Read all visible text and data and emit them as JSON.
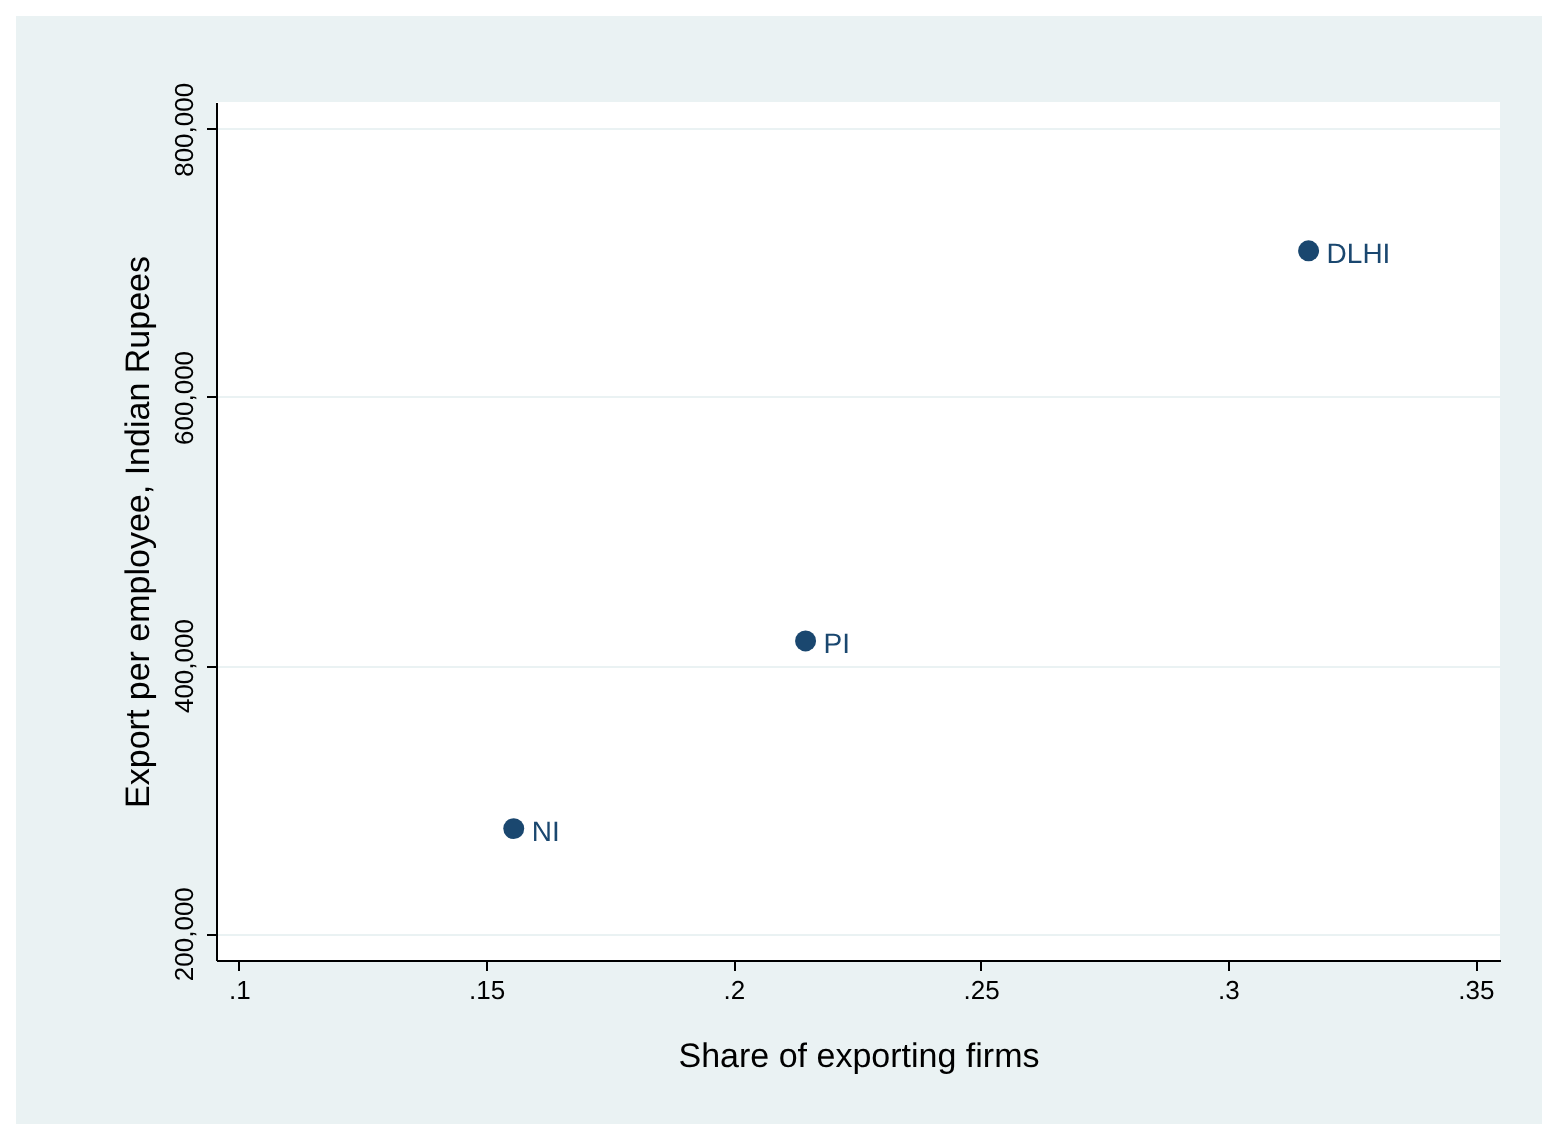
{
  "chart_data": {
    "type": "scatter",
    "xlabel": "Share of exporting firms",
    "ylabel": "Export per employee, Indian Rupees",
    "x": [
      0.1556,
      0.2146,
      0.3163
    ],
    "values": [
      278000,
      418000,
      709000
    ],
    "color": "#1a476f",
    "marker": "circle",
    "grid": "y",
    "xlim": [
      0.0954,
      0.355
    ],
    "ylim": [
      180000,
      820000
    ],
    "xticks": [
      {
        "value": 0.1,
        "label": ".1"
      },
      {
        "value": 0.15,
        "label": ".15"
      },
      {
        "value": 0.2,
        "label": ".2"
      },
      {
        "value": 0.25,
        "label": ".25"
      },
      {
        "value": 0.3,
        "label": ".3"
      },
      {
        "value": 0.35,
        "label": ".35"
      }
    ],
    "yticks": [
      {
        "value": 200000,
        "label": "200,000"
      },
      {
        "value": 400000,
        "label": "400,000"
      },
      {
        "value": 600000,
        "label": "600,000"
      },
      {
        "value": 800000,
        "label": "800,000"
      }
    ],
    "annotations": [
      {
        "text": "NI",
        "x": 0.1556,
        "y": 278000
      },
      {
        "text": "PI",
        "x": 0.2146,
        "y": 418000
      },
      {
        "text": "DLHI",
        "x": 0.3163,
        "y": 709000
      }
    ]
  }
}
